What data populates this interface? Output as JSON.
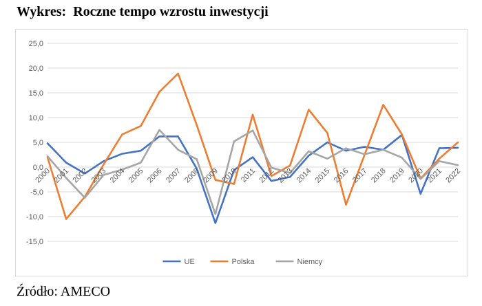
{
  "page": {
    "title": "Wykres:  Roczne tempo wzrostu inwestycji",
    "source": "Źródło: AMECO"
  },
  "chart_data": {
    "type": "line",
    "title": "",
    "xlabel": "",
    "ylabel": "",
    "x": [
      "2000",
      "2001",
      "2002",
      "2003",
      "2004",
      "2005",
      "2006",
      "2007",
      "2008",
      "2009",
      "2010",
      "2011",
      "2012",
      "2013",
      "2014",
      "2015",
      "2016",
      "2017",
      "2018",
      "2019",
      "2020",
      "2021",
      "2022"
    ],
    "ylim": [
      -15,
      25
    ],
    "yticks": [
      25,
      20,
      15,
      10,
      5,
      0,
      -5,
      -10,
      -15
    ],
    "ytick_labels": [
      "25,0",
      "20,0",
      "15,0",
      "10,0",
      "5,0",
      "0,0",
      "-5,0",
      "-10,0",
      "-15,0"
    ],
    "grid": true,
    "legend_position": "bottom",
    "series": [
      {
        "name": "UE",
        "color": "#4472c4",
        "values": [
          4.8,
          0.9,
          -1.3,
          1.2,
          2.7,
          3.3,
          6.2,
          6.2,
          -0.3,
          -11.3,
          -0.6,
          2.0,
          -2.8,
          -2.0,
          2.3,
          5.0,
          3.3,
          4.1,
          3.5,
          6.5,
          -5.4,
          3.8,
          3.9
        ]
      },
      {
        "name": "Polska",
        "color": "#ed7d31",
        "values": [
          2.0,
          -10.5,
          -6.0,
          0.5,
          6.6,
          8.3,
          15.2,
          18.9,
          8.5,
          -2.6,
          -3.4,
          10.6,
          -1.8,
          0.3,
          11.6,
          6.9,
          -7.6,
          2.5,
          12.6,
          6.6,
          -2.3,
          1.7,
          5.0
        ]
      },
      {
        "name": "Niemcy",
        "color": "#a5a5a5",
        "values": [
          2.2,
          -2.2,
          -6.2,
          -1.6,
          -0.5,
          0.9,
          7.5,
          3.5,
          1.6,
          -9.5,
          5.2,
          7.4,
          -0.1,
          -1.2,
          3.2,
          1.7,
          3.8,
          2.6,
          3.5,
          1.9,
          -2.4,
          1.2,
          0.4
        ]
      }
    ]
  }
}
